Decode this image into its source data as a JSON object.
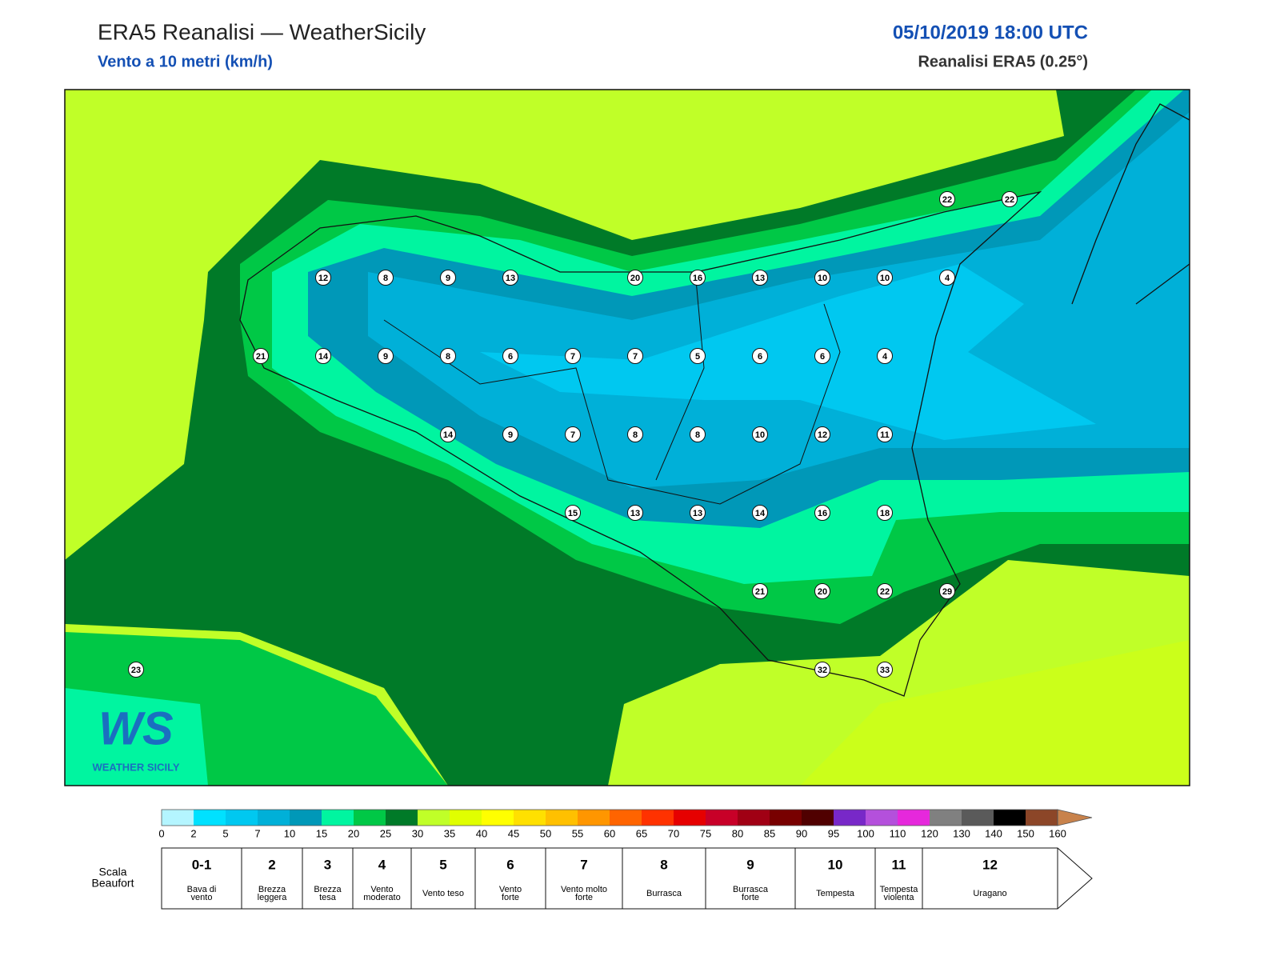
{
  "header": {
    "title": "ERA5 Reanalisi — WeatherSicily",
    "subtitle": "Vento a 10 metri (km/h)",
    "datetime": "05/10/2019 18:00 UTC",
    "source": "Reanalisi ERA5 (0.25°)"
  },
  "map": {
    "rows": [
      [
        22,
        22
      ],
      [
        12,
        8,
        9,
        13,
        20,
        16,
        13,
        10,
        10,
        4
      ],
      [
        21,
        14,
        9,
        8,
        6,
        7,
        7,
        5,
        6,
        6,
        4
      ],
      [
        14,
        9,
        7,
        8,
        8,
        10,
        12,
        11
      ],
      [
        15,
        13,
        13,
        14,
        16,
        18
      ],
      [
        21,
        20,
        22,
        29
      ],
      [
        23,
        32,
        33
      ]
    ]
  },
  "logo": {
    "text": "WS",
    "subtitle": "WEATHER SICILY"
  },
  "colorbar": {
    "ticks": [
      0,
      2,
      5,
      7,
      10,
      15,
      20,
      25,
      30,
      35,
      40,
      45,
      50,
      55,
      60,
      65,
      70,
      75,
      80,
      85,
      90,
      95,
      100,
      110,
      120,
      130,
      140,
      150,
      160
    ],
    "colors": [
      "#b4f5ff",
      "#00e1ff",
      "#00c8f0",
      "#00b0d8",
      "#0098b8",
      "#00f5a0",
      "#00c846",
      "#007a28",
      "#c0ff28",
      "#e0ff00",
      "#ffff00",
      "#ffe000",
      "#ffc000",
      "#ff9600",
      "#ff6400",
      "#ff3200",
      "#e60000",
      "#c80028",
      "#a00014",
      "#780000",
      "#500000",
      "#7828c8",
      "#b450dc",
      "#e628dc",
      "#808080",
      "#5a5a5a",
      "#000000",
      "#8c4628",
      "#c8824b"
    ]
  },
  "beaufort": {
    "label": [
      "Scala",
      "Beaufort"
    ],
    "levels": [
      {
        "force": "0-1",
        "description": [
          "Bava di",
          "vento"
        ]
      },
      {
        "force": "2",
        "description": [
          "Brezza",
          "leggera"
        ]
      },
      {
        "force": "3",
        "description": [
          "Brezza",
          "tesa"
        ]
      },
      {
        "force": "4",
        "description": [
          "Vento",
          "moderato"
        ]
      },
      {
        "force": "5",
        "description": [
          "Vento teso"
        ]
      },
      {
        "force": "6",
        "description": [
          "Vento",
          "forte"
        ]
      },
      {
        "force": "7",
        "description": [
          "Vento molto",
          "forte"
        ]
      },
      {
        "force": "8",
        "description": [
          "Burrasca"
        ]
      },
      {
        "force": "9",
        "description": [
          "Burrasca",
          "forte"
        ]
      },
      {
        "force": "10",
        "description": [
          "Tempesta"
        ]
      },
      {
        "force": "11",
        "description": [
          "Tempesta",
          "violenta"
        ]
      },
      {
        "force": "12",
        "description": [
          "Uragano"
        ]
      }
    ]
  }
}
